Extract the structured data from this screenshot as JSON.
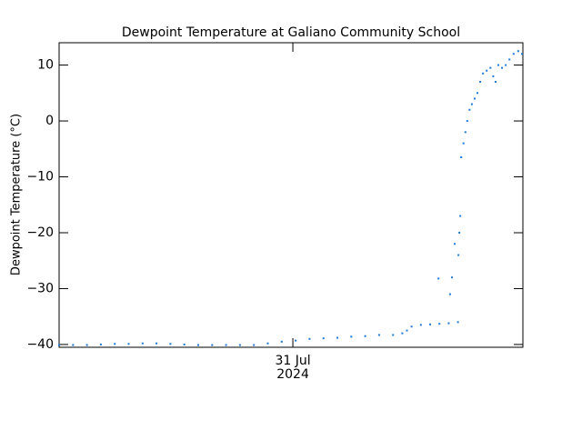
{
  "chart_data": {
    "type": "scatter",
    "title": "Dewpoint Temperature at Galiano Community School",
    "ylabel": "Dewpoint Temperature (°C)",
    "xlim": [
      0,
      100
    ],
    "xticks": [
      {
        "value": 50.4,
        "label": [
          "31 Jul",
          "2024"
        ]
      }
    ],
    "ylim": [
      -40.5,
      14
    ],
    "yticks": [
      {
        "value": -40,
        "label": "−40"
      },
      {
        "value": -30,
        "label": "−30"
      },
      {
        "value": -20,
        "label": "−20"
      },
      {
        "value": -10,
        "label": "−10"
      },
      0,
      10
    ],
    "series": [
      {
        "color": "#1f78d6",
        "x": [
          0,
          3,
          6,
          9,
          12,
          15,
          18,
          21,
          24,
          27,
          30,
          33,
          36,
          39,
          42,
          45,
          48,
          51,
          54,
          57,
          60,
          63,
          66,
          69,
          72,
          74,
          75,
          76,
          78,
          80,
          82,
          84,
          86,
          81.8,
          84.7,
          84.3,
          85.3,
          86.3,
          86.5,
          86.1,
          86.7,
          87.2,
          87.6,
          88.0,
          88.5,
          89.0,
          89.6,
          90.2,
          90.8,
          91.4,
          92.2,
          93.0,
          93.6,
          94.1,
          94.7,
          95.5,
          96.3,
          97.1,
          98.0,
          99.0,
          99.8
        ],
        "values": [
          -40.1,
          -40.1,
          -40.1,
          -40.0,
          -39.9,
          -39.9,
          -39.8,
          -39.8,
          -39.9,
          -40.0,
          -40.1,
          -40.1,
          -40.1,
          -40.1,
          -40.1,
          -39.8,
          -39.5,
          -39.3,
          -39.0,
          -38.9,
          -38.8,
          -38.6,
          -38.5,
          -38.3,
          -38.3,
          -38.0,
          -37.5,
          -36.8,
          -36.5,
          -36.4,
          -36.3,
          -36.2,
          -36.0,
          -28.2,
          -28.0,
          -31.0,
          -22.0,
          -20.0,
          -17.0,
          -24.0,
          -6.5,
          -4.0,
          -2.0,
          0.0,
          2.0,
          3.0,
          4.0,
          5.0,
          7.0,
          8.5,
          9.0,
          9.5,
          8.0,
          7.0,
          10.0,
          9.5,
          10.0,
          11.0,
          12.0,
          12.5,
          12.0
        ]
      }
    ]
  }
}
